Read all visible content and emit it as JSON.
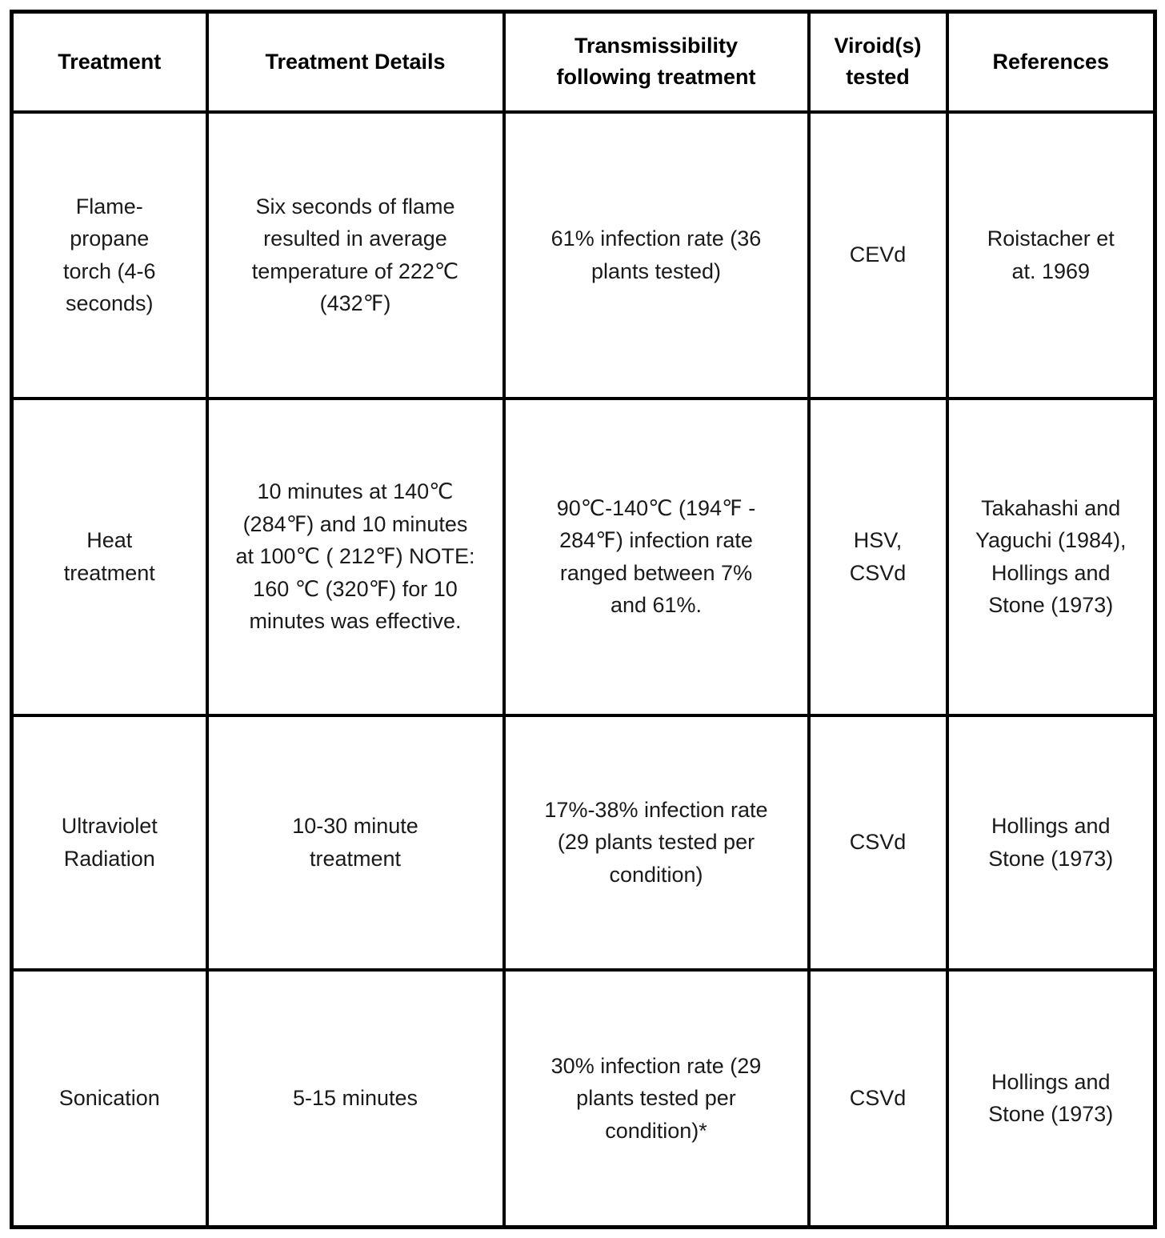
{
  "table": {
    "headers": [
      "Treatment",
      "Treatment Details",
      "Transmissibility\nfollowing treatment",
      "Viroid(s)\ntested",
      "References"
    ],
    "rows": [
      {
        "treatment": "Flame-\npropane\ntorch (4-6\nseconds)",
        "details": "Six seconds of flame\nresulted in average\ntemperature of 222℃\n(432℉)",
        "transmissibility": "61% infection rate (36\nplants tested)",
        "viroids": "CEVd",
        "references": "Roistacher et\nat. 1969"
      },
      {
        "treatment": "Heat\ntreatment",
        "details": "10 minutes at 140℃\n(284℉) and 10 minutes\nat 100℃ ( 212℉) NOTE:\n160 ℃ (320℉) for 10\nminutes was effective.",
        "transmissibility": "90℃-140℃ (194℉ -\n284℉) infection rate\nranged between 7%\nand 61%.",
        "viroids": "HSV,\nCSVd",
        "references": "Takahashi and\nYaguchi (1984),\nHollings and\nStone (1973)"
      },
      {
        "treatment": "Ultraviolet\nRadiation",
        "details": "10-30 minute\ntreatment",
        "transmissibility": "17%-38% infection rate\n(29 plants tested per\ncondition)",
        "viroids": "CSVd",
        "references": "Hollings and\nStone (1973)"
      },
      {
        "treatment": "Sonication",
        "details": "5-15 minutes",
        "transmissibility": "30% infection rate (29\nplants tested per\ncondition)*",
        "viroids": "CSVd",
        "references": "Hollings and\nStone (1973)"
      }
    ],
    "colors": {
      "border": "#000000",
      "text": "#1a1a1a",
      "background": "#ffffff"
    }
  }
}
